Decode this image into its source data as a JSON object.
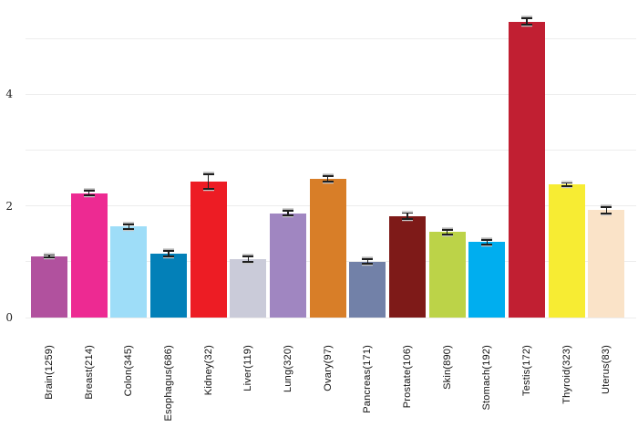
{
  "chart_data": {
    "type": "bar",
    "title": "",
    "xlabel": "",
    "ylabel": "",
    "legend_position": "none",
    "grid": "horizontal-light",
    "background_color": "#ffffff",
    "gridline_color": "#ededed",
    "error_bar_color": "#1f1f1f",
    "ylim": [
      0,
      5.69
    ],
    "ytick_labels": [
      {
        "value": 0,
        "label": "0"
      },
      {
        "value": 2,
        "label": "2"
      },
      {
        "value": 4,
        "label": "4"
      }
    ],
    "gridline_values": [
      0,
      1,
      2,
      3,
      4,
      5
    ],
    "categories": [
      "Brain(1259)",
      "Breast(214)",
      "Colon(345)",
      "Esophagus(686)",
      "Kidney(32)",
      "Liver(119)",
      "Lung(320)",
      "Ovary(97)",
      "Pancreas(171)",
      "Prostate(106)",
      "Skin(890)",
      "Stomach(192)",
      "Testis(172)",
      "Thyroid(323)",
      "Uterus(83)"
    ],
    "values": [
      1.1,
      2.23,
      1.63,
      1.14,
      2.44,
      1.04,
      1.87,
      2.48,
      1.0,
      1.82,
      1.53,
      1.35,
      5.3,
      2.38,
      1.92
    ],
    "errors": [
      0.02,
      0.04,
      0.04,
      0.05,
      0.13,
      0.05,
      0.04,
      0.05,
      0.04,
      0.05,
      0.04,
      0.04,
      0.06,
      0.03,
      0.06
    ],
    "bar_colors": [
      "#B1519E",
      "#ED2A92",
      "#9EDDF8",
      "#0380B8",
      "#ED1C24",
      "#CACBD9",
      "#A086C1",
      "#D87E28",
      "#7281A8",
      "#7E1A18",
      "#BCD348",
      "#00AEEF",
      "#C11F32",
      "#F7EC33",
      "#FAE3C8"
    ]
  }
}
